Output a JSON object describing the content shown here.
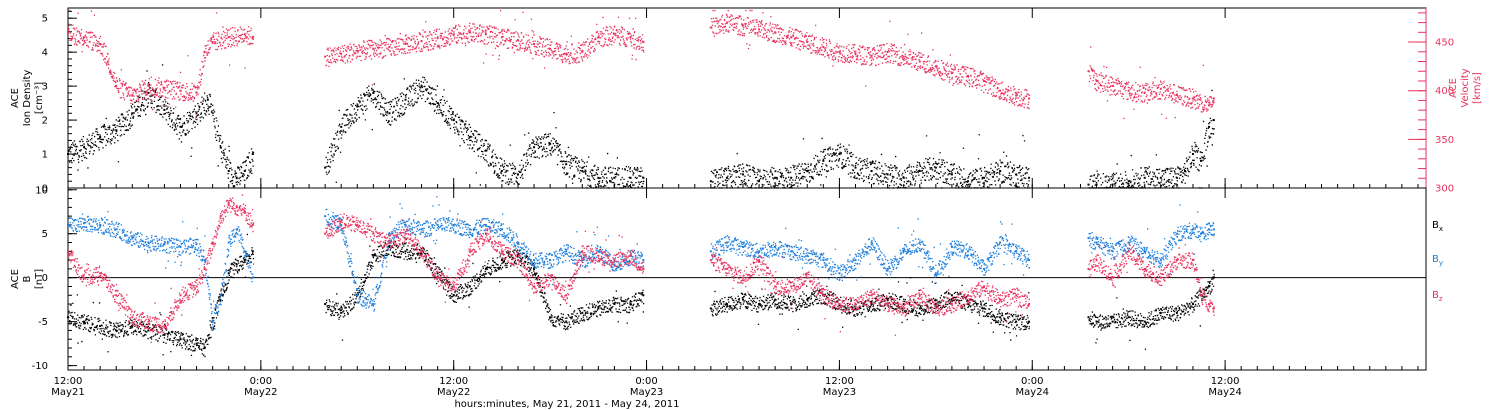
{
  "chart_data": [
    {
      "type": "scatter",
      "panel": "top",
      "ylabel_lines": [
        "ACE",
        "Ion Density",
        "[cm⁻³]"
      ],
      "y2label_lines": [
        "ACE",
        "Velocity",
        "[km/s]"
      ],
      "ylim": [
        0,
        5.3
      ],
      "yticks": [
        0,
        1,
        2,
        3,
        4,
        5
      ],
      "ytick_labels": [
        "0",
        "1",
        "2",
        "3",
        "4",
        "5"
      ],
      "y2lim": [
        300,
        485
      ],
      "y2ticks": [
        300,
        350,
        400,
        450
      ],
      "y2tick_labels": [
        "300",
        "350",
        "400",
        "450"
      ],
      "x_unit": "hours since 2011-05-21 00:00 UT",
      "series": [
        {
          "axis": "left",
          "color": "#000000",
          "x": [
            12.0,
            13.0,
            14.0,
            15.0,
            16.0,
            17.0,
            18.0,
            19.0,
            20.0,
            20.7,
            21.5,
            22.0,
            22.5,
            23.0,
            23.5,
            28.0,
            29.0,
            30.0,
            31.0,
            32.0,
            33.0,
            34.0,
            35.0,
            36.0,
            37.0,
            38.0,
            39.0,
            40.0,
            41.0,
            42.0,
            43.0,
            44.0,
            45.0,
            46.0,
            47.0,
            47.8,
            52.0,
            53.0,
            54.0,
            55.0,
            56.0,
            57.0,
            58.0,
            59.0,
            60.0,
            61.0,
            62.0,
            63.0,
            64.0,
            65.0,
            66.0,
            67.0,
            68.0,
            69.0,
            70.0,
            71.0,
            71.8,
            75.5,
            76.0,
            77.0,
            78.0,
            79.0,
            80.0,
            81.0,
            81.5,
            82.0,
            82.5,
            83.0,
            83.3
          ],
          "y": [
            1.0,
            1.2,
            1.5,
            1.7,
            2.2,
            2.8,
            2.3,
            1.8,
            2.2,
            2.6,
            1.2,
            0.5,
            0.3,
            0.5,
            1.0,
            0.6,
            1.8,
            2.4,
            2.8,
            2.2,
            2.6,
            3.0,
            2.5,
            2.0,
            1.5,
            1.1,
            0.5,
            0.4,
            1.2,
            1.3,
            0.7,
            0.5,
            0.3,
            0.3,
            0.3,
            0.3,
            0.2,
            0.3,
            0.4,
            0.2,
            0.3,
            0.3,
            0.5,
            0.8,
            1.0,
            0.6,
            0.5,
            0.4,
            0.3,
            0.5,
            0.6,
            0.4,
            0.2,
            0.3,
            0.5,
            0.4,
            0.3,
            0.1,
            0.1,
            0.1,
            0.2,
            0.3,
            0.3,
            0.3,
            0.5,
            1.0,
            0.8,
            1.8,
            2.0
          ]
        },
        {
          "axis": "right",
          "color": "#e8335f",
          "x": [
            12.0,
            13.0,
            14.0,
            14.5,
            15.0,
            16.0,
            17.0,
            18.0,
            19.0,
            20.0,
            20.5,
            21.0,
            22.0,
            23.0,
            23.5,
            28.0,
            29.0,
            30.0,
            31.0,
            32.0,
            33.0,
            34.0,
            35.0,
            36.0,
            37.0,
            38.0,
            39.0,
            40.0,
            41.0,
            42.0,
            43.0,
            44.0,
            45.0,
            46.0,
            47.0,
            47.8,
            52.0,
            53.0,
            54.0,
            55.0,
            56.0,
            57.0,
            58.0,
            59.0,
            60.0,
            61.0,
            62.0,
            63.0,
            64.0,
            65.0,
            66.0,
            67.0,
            68.0,
            69.0,
            70.0,
            71.0,
            71.8,
            75.5,
            76.0,
            77.0,
            78.0,
            79.0,
            80.0,
            81.0,
            82.0,
            83.0,
            83.3
          ],
          "y": [
            460,
            455,
            448,
            430,
            405,
            395,
            405,
            403,
            400,
            398,
            440,
            450,
            455,
            458,
            455,
            435,
            438,
            441,
            443,
            445,
            448,
            451,
            454,
            458,
            460,
            458,
            455,
            452,
            448,
            443,
            438,
            440,
            455,
            458,
            455,
            450,
            465,
            470,
            467,
            463,
            460,
            455,
            450,
            445,
            440,
            438,
            436,
            440,
            435,
            430,
            425,
            418,
            415,
            410,
            400,
            395,
            392,
            420,
            410,
            405,
            400,
            398,
            402,
            396,
            392,
            385,
            392
          ]
        }
      ]
    },
    {
      "type": "scatter",
      "panel": "bottom",
      "ylabel_lines": [
        "ACE",
        "B",
        "[nT]"
      ],
      "ylim": [
        -10.5,
        10.2
      ],
      "yticks": [
        -10,
        -5,
        0,
        5,
        10
      ],
      "ytick_labels": [
        "-10",
        "-5",
        "0",
        "5",
        "10"
      ],
      "zero_line": true,
      "xticks": [
        12,
        24,
        36,
        48,
        60,
        72,
        84
      ],
      "xtick_labels": [
        [
          "12:00",
          "May21"
        ],
        [
          "0:00",
          "May22"
        ],
        [
          "12:00",
          "May22"
        ],
        [
          "0:00",
          "May23"
        ],
        [
          "12:00",
          "May23"
        ],
        [
          "0:00",
          "May24"
        ],
        [
          "12:00",
          "May24"
        ]
      ],
      "xlim": [
        12,
        96.5
      ],
      "xlabel": "hours:minutes, May 21, 2011 - May 24, 2011",
      "series": [
        {
          "name": "Bx",
          "color": "#000000",
          "x": [
            12.0,
            13.0,
            14.0,
            15.0,
            16.0,
            17.0,
            18.0,
            19.0,
            20.0,
            20.5,
            21.0,
            21.5,
            22.0,
            22.5,
            23.0,
            23.5,
            28.0,
            29.0,
            30.0,
            31.0,
            32.0,
            33.0,
            34.0,
            35.0,
            36.0,
            37.0,
            38.0,
            39.0,
            40.0,
            41.0,
            42.0,
            43.0,
            44.0,
            45.0,
            46.0,
            47.0,
            47.8,
            52.0,
            53.0,
            54.0,
            55.0,
            56.0,
            57.0,
            58.0,
            59.0,
            60.0,
            61.0,
            62.0,
            63.0,
            64.0,
            65.0,
            66.0,
            67.0,
            68.0,
            69.0,
            70.0,
            71.0,
            71.8,
            75.5,
            76.0,
            77.0,
            78.0,
            79.0,
            80.0,
            81.0,
            82.0,
            82.5,
            83.0,
            83.3
          ],
          "y": [
            -4.5,
            -5.0,
            -5.5,
            -6.0,
            -5.5,
            -6.0,
            -6.5,
            -7.0,
            -7.5,
            -8.0,
            -5.0,
            -2.0,
            0.5,
            1.5,
            2.0,
            3.0,
            -3.0,
            -4.0,
            -2.0,
            2.5,
            3.5,
            3.0,
            3.0,
            0.5,
            -2.0,
            -1.0,
            1.0,
            2.0,
            2.5,
            1.0,
            -4.5,
            -5.0,
            -4.0,
            -3.5,
            -3.0,
            -3.0,
            -2.0,
            -3.5,
            -3.0,
            -2.5,
            -3.0,
            -2.5,
            -3.0,
            -2.5,
            -2.0,
            -3.0,
            -3.5,
            -3.0,
            -2.5,
            -3.0,
            -3.5,
            -3.0,
            -2.0,
            -3.0,
            -3.5,
            -4.5,
            -5.0,
            -5.0,
            -4.5,
            -5.0,
            -5.0,
            -4.5,
            -5.0,
            -4.0,
            -4.0,
            -3.0,
            -2.0,
            -1.0,
            0.0
          ]
        },
        {
          "name": "By",
          "color": "#1e7fdc",
          "x": [
            12.0,
            13.0,
            14.0,
            15.0,
            16.0,
            17.0,
            18.0,
            19.0,
            20.0,
            20.5,
            21.0,
            21.5,
            22.0,
            22.5,
            23.0,
            23.5,
            28.0,
            29.0,
            30.0,
            31.0,
            32.0,
            33.0,
            34.0,
            35.0,
            36.0,
            37.0,
            38.0,
            39.0,
            40.0,
            41.0,
            42.0,
            43.0,
            44.0,
            45.0,
            46.0,
            47.0,
            47.8,
            52.0,
            53.0,
            54.0,
            55.0,
            56.0,
            57.0,
            58.0,
            59.0,
            60.0,
            61.0,
            62.0,
            63.0,
            64.0,
            65.0,
            66.0,
            67.0,
            68.0,
            69.0,
            70.0,
            71.0,
            71.8,
            75.5,
            76.0,
            77.0,
            78.0,
            79.0,
            80.0,
            81.0,
            82.0,
            82.5,
            83.0,
            83.3
          ],
          "y": [
            6.0,
            6.2,
            6.0,
            5.5,
            4.5,
            4.0,
            3.8,
            3.5,
            3.8,
            2.0,
            -5.0,
            -2.0,
            4.0,
            5.5,
            3.0,
            0.0,
            7.0,
            6.0,
            -2.0,
            -3.0,
            5.0,
            6.0,
            5.5,
            6.0,
            6.0,
            5.5,
            6.0,
            5.5,
            4.0,
            2.0,
            2.0,
            3.0,
            2.0,
            3.0,
            1.5,
            2.5,
            2.0,
            3.0,
            4.0,
            3.5,
            3.0,
            3.5,
            3.0,
            2.5,
            2.0,
            0.5,
            2.0,
            4.0,
            1.0,
            3.0,
            4.0,
            0.5,
            3.5,
            3.0,
            1.0,
            4.0,
            3.0,
            2.0,
            4.5,
            4.0,
            3.0,
            4.0,
            3.0,
            2.0,
            5.0,
            5.5,
            5.0,
            5.5,
            5.5
          ]
        },
        {
          "name": "Bz",
          "color": "#e8335f",
          "x": [
            12.0,
            13.0,
            14.0,
            15.0,
            16.0,
            17.0,
            18.0,
            19.0,
            20.0,
            20.5,
            21.0,
            21.5,
            22.0,
            22.5,
            23.0,
            23.5,
            28.0,
            29.0,
            30.0,
            31.0,
            32.0,
            33.0,
            34.0,
            35.0,
            36.0,
            37.0,
            38.0,
            39.0,
            40.0,
            41.0,
            42.0,
            43.0,
            44.0,
            45.0,
            46.0,
            47.0,
            47.8,
            52.0,
            53.0,
            54.0,
            55.0,
            56.0,
            57.0,
            58.0,
            59.0,
            60.0,
            61.0,
            62.0,
            63.0,
            64.0,
            65.0,
            66.0,
            67.0,
            68.0,
            69.0,
            70.0,
            71.0,
            71.8,
            75.5,
            76.0,
            77.0,
            78.0,
            79.0,
            80.0,
            81.0,
            82.0,
            82.5,
            83.0,
            83.3
          ],
          "y": [
            3.0,
            0.0,
            0.5,
            -2.0,
            -4.5,
            -5.0,
            -5.5,
            -2.0,
            -1.0,
            1.0,
            4.0,
            7.0,
            8.5,
            8.0,
            7.5,
            6.0,
            5.0,
            6.5,
            6.0,
            5.0,
            4.0,
            5.0,
            3.0,
            0.0,
            -1.0,
            3.0,
            5.0,
            3.0,
            2.0,
            -1.0,
            0.0,
            -2.0,
            3.0,
            2.5,
            2.0,
            2.5,
            1.0,
            2.0,
            1.0,
            0.0,
            2.0,
            -1.0,
            -1.0,
            0.0,
            -2.0,
            -3.0,
            -3.0,
            -2.0,
            -3.0,
            -3.5,
            -2.0,
            -3.5,
            -3.0,
            -2.0,
            -1.0,
            -2.5,
            -2.0,
            -3.0,
            1.0,
            2.0,
            0.0,
            3.0,
            1.0,
            0.0,
            2.0,
            2.0,
            -2.0,
            -3.0,
            -3.5
          ]
        }
      ],
      "legend_placement": "right"
    }
  ]
}
